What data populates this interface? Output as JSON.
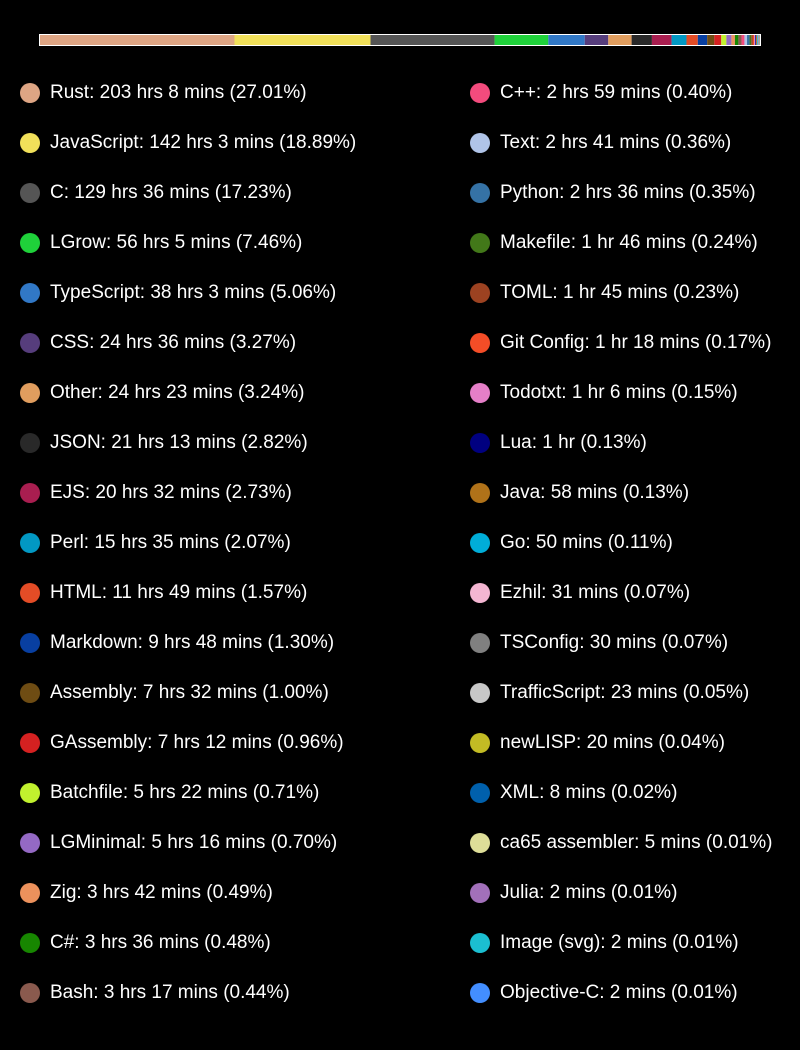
{
  "chart_data": {
    "type": "bar",
    "title": "",
    "unit": "%",
    "entries": [
      {
        "name": "Rust",
        "time": "203 hrs 8 mins",
        "percent": 27.01,
        "label": "Rust: 203 hrs 8 mins (27.01%)",
        "color": "#dea584"
      },
      {
        "name": "JavaScript",
        "time": "142 hrs 3 mins",
        "percent": 18.89,
        "label": "JavaScript: 142 hrs 3 mins (18.89%)",
        "color": "#f1e05a"
      },
      {
        "name": "C",
        "time": "129 hrs 36 mins",
        "percent": 17.23,
        "label": "C: 129 hrs 36 mins (17.23%)",
        "color": "#555555"
      },
      {
        "name": "LGrow",
        "time": "56 hrs 5 mins",
        "percent": 7.46,
        "label": "LGrow: 56 hrs 5 mins (7.46%)",
        "color": "#1fd13a"
      },
      {
        "name": "TypeScript",
        "time": "38 hrs 3 mins",
        "percent": 5.06,
        "label": "TypeScript: 38 hrs 3 mins (5.06%)",
        "color": "#3178c6"
      },
      {
        "name": "CSS",
        "time": "24 hrs 36 mins",
        "percent": 3.27,
        "label": "CSS: 24 hrs 36 mins (3.27%)",
        "color": "#563d7c"
      },
      {
        "name": "Other",
        "time": "24 hrs 23 mins",
        "percent": 3.24,
        "label": "Other: 24 hrs 23 mins (3.24%)",
        "color": "#e09d5e"
      },
      {
        "name": "JSON",
        "time": "21 hrs 13 mins",
        "percent": 2.82,
        "label": "JSON: 21 hrs 13 mins (2.82%)",
        "color": "#292929"
      },
      {
        "name": "EJS",
        "time": "20 hrs 32 mins",
        "percent": 2.73,
        "label": "EJS: 20 hrs 32 mins (2.73%)",
        "color": "#a91e50"
      },
      {
        "name": "Perl",
        "time": "15 hrs 35 mins",
        "percent": 2.07,
        "label": "Perl: 15 hrs 35 mins (2.07%)",
        "color": "#0298c3"
      },
      {
        "name": "HTML",
        "time": "11 hrs 49 mins",
        "percent": 1.57,
        "label": "HTML: 11 hrs 49 mins (1.57%)",
        "color": "#e34c26"
      },
      {
        "name": "Markdown",
        "time": "9 hrs 48 mins",
        "percent": 1.3,
        "label": "Markdown: 9 hrs 48 mins (1.30%)",
        "color": "#083fa1"
      },
      {
        "name": "Assembly",
        "time": "7 hrs 32 mins",
        "percent": 1.0,
        "label": "Assembly: 7 hrs 32 mins (1.00%)",
        "color": "#6e4c13"
      },
      {
        "name": "GAssembly",
        "time": "7 hrs 12 mins",
        "percent": 0.96,
        "label": "GAssembly: 7 hrs 12 mins (0.96%)",
        "color": "#d52121"
      },
      {
        "name": "Batchfile",
        "time": "5 hrs 22 mins",
        "percent": 0.71,
        "label": "Batchfile: 5 hrs 22 mins (0.71%)",
        "color": "#c1f12e"
      },
      {
        "name": "LGMinimal",
        "time": "5 hrs 16 mins",
        "percent": 0.7,
        "label": "LGMinimal: 5 hrs 16 mins (0.70%)",
        "color": "#9469c4"
      },
      {
        "name": "Zig",
        "time": "3 hrs 42 mins",
        "percent": 0.49,
        "label": "Zig: 3 hrs 42 mins (0.49%)",
        "color": "#ec915c"
      },
      {
        "name": "C#",
        "time": "3 hrs 36 mins",
        "percent": 0.48,
        "label": "C#: 3 hrs 36 mins (0.48%)",
        "color": "#178600"
      },
      {
        "name": "Bash",
        "time": "3 hrs 17 mins",
        "percent": 0.44,
        "label": "Bash: 3 hrs 17 mins (0.44%)",
        "color": "#8a5a4e"
      },
      {
        "name": "C++",
        "time": "2 hrs 59 mins",
        "percent": 0.4,
        "label": "C++: 2 hrs 59 mins (0.40%)",
        "color": "#f34b7d"
      },
      {
        "name": "Text",
        "time": "2 hrs 41 mins",
        "percent": 0.36,
        "label": "Text: 2 hrs 41 mins (0.36%)",
        "color": "#b0c4e8"
      },
      {
        "name": "Python",
        "time": "2 hrs 36 mins",
        "percent": 0.35,
        "label": "Python: 2 hrs 36 mins (0.35%)",
        "color": "#3572a5"
      },
      {
        "name": "Makefile",
        "time": "1 hr 46 mins",
        "percent": 0.24,
        "label": "Makefile: 1 hr 46 mins (0.24%)",
        "color": "#427819"
      },
      {
        "name": "TOML",
        "time": "1 hr 45 mins",
        "percent": 0.23,
        "label": "TOML: 1 hr 45 mins (0.23%)",
        "color": "#9c4221"
      },
      {
        "name": "Git Config",
        "time": "1 hr 18 mins",
        "percent": 0.17,
        "label": "Git Config: 1 hr 18 mins (0.17%)",
        "color": "#f44d27"
      },
      {
        "name": "Todotxt",
        "time": "1 hr 6 mins",
        "percent": 0.15,
        "label": "Todotxt: 1 hr 6 mins (0.15%)",
        "color": "#e57fc8"
      },
      {
        "name": "Lua",
        "time": "1 hr",
        "percent": 0.13,
        "label": "Lua: 1 hr (0.13%)",
        "color": "#000080"
      },
      {
        "name": "Java",
        "time": "58 mins",
        "percent": 0.13,
        "label": "Java: 58 mins (0.13%)",
        "color": "#b07219"
      },
      {
        "name": "Go",
        "time": "50 mins",
        "percent": 0.11,
        "label": "Go: 50 mins (0.11%)",
        "color": "#00add8"
      },
      {
        "name": "Ezhil",
        "time": "31 mins",
        "percent": 0.07,
        "label": "Ezhil: 31 mins (0.07%)",
        "color": "#f4b6d2"
      },
      {
        "name": "TSConfig",
        "time": "30 mins",
        "percent": 0.07,
        "label": "TSConfig: 30 mins (0.07%)",
        "color": "#808080"
      },
      {
        "name": "TrafficScript",
        "time": "23 mins",
        "percent": 0.05,
        "label": "TrafficScript: 23 mins (0.05%)",
        "color": "#c8c8c8"
      },
      {
        "name": "newLISP",
        "time": "20 mins",
        "percent": 0.04,
        "label": "newLISP: 20 mins (0.04%)",
        "color": "#c2bb24"
      },
      {
        "name": "XML",
        "time": "8 mins",
        "percent": 0.02,
        "label": "XML: 8 mins (0.02%)",
        "color": "#0060ac"
      },
      {
        "name": "ca65 assembler",
        "time": "5 mins",
        "percent": 0.01,
        "label": "ca65 assembler: 5 mins (0.01%)",
        "color": "#dede98"
      },
      {
        "name": "Julia",
        "time": "2 mins",
        "percent": 0.01,
        "label": "Julia: 2 mins (0.01%)",
        "color": "#a270ba"
      },
      {
        "name": "Image (svg)",
        "time": "2 mins",
        "percent": 0.01,
        "label": "Image (svg): 2 mins (0.01%)",
        "color": "#1bbfd1"
      },
      {
        "name": "Objective-C",
        "time": "2 mins",
        "percent": 0.01,
        "label": "Objective-C: 2 mins (0.01%)",
        "color": "#438eff"
      }
    ]
  }
}
